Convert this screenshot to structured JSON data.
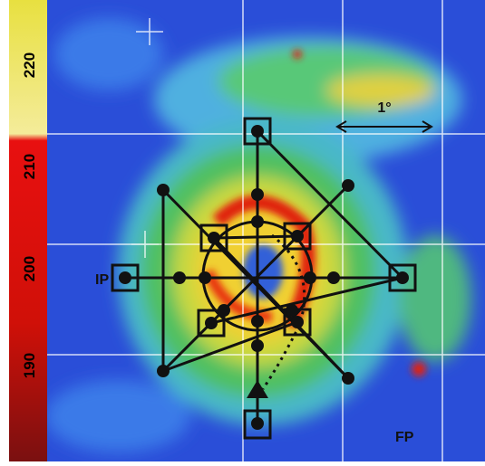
{
  "colorbar": {
    "tick_labels": [
      "220",
      "210",
      "200",
      "190"
    ]
  },
  "labels": {
    "scale": "1°",
    "initial_point": "IP",
    "final_point": "FP"
  }
}
